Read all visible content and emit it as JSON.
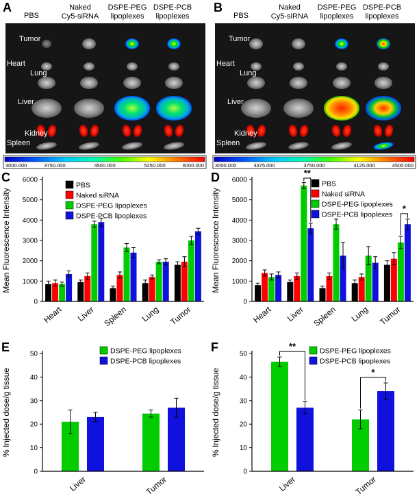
{
  "panel_labels": {
    "A": "A",
    "B": "B",
    "C": "C",
    "D": "D",
    "E": "E",
    "F": "F"
  },
  "imaging_panels": [
    {
      "id": "A",
      "column_headers": [
        [
          "PBS"
        ],
        [
          "Naked",
          "Cy5-siRNA"
        ],
        [
          "DSPE-PEG",
          "lipoplexes"
        ],
        [
          "DSPE-PCB",
          "lipoplexes"
        ]
      ],
      "organ_labels": [
        "Tumor",
        "Heart",
        "Lung",
        "Liver",
        "Kidney",
        "Spleen"
      ],
      "colorbar_ticks": [
        "3000.000",
        "3750.000",
        "4500.000",
        "5250.000",
        "6000.000"
      ],
      "organ_fluorescence": {
        "tumor": [
          "dim",
          "gray",
          "hot",
          "hot"
        ],
        "heart": [
          "gray",
          "gray",
          "gray",
          "gray"
        ],
        "lung": [
          "gray",
          "gray",
          "gray",
          "gray"
        ],
        "liver": [
          "gray",
          "gray",
          "hotgreen",
          "hotgreen"
        ],
        "kidney": [
          "red",
          "red",
          "red",
          "red"
        ],
        "spleen": [
          "gray",
          "gray",
          "gray",
          "gray"
        ]
      }
    },
    {
      "id": "B",
      "column_headers": [
        [
          "PBS"
        ],
        [
          "Naked",
          "Cy5-siRNA"
        ],
        [
          "DSPE-PEG",
          "lipoplexes"
        ],
        [
          "DSPE-PCB",
          "lipoplexes"
        ]
      ],
      "organ_labels": [
        "Tumor",
        "Heart",
        "Lung",
        "Liver",
        "Kidney",
        "Spleen"
      ],
      "colorbar_ticks": [
        "3000.000",
        "3375.000",
        "3750.000",
        "4125.000",
        "4500.000"
      ],
      "organ_fluorescence": {
        "tumor": [
          "gray",
          "gray",
          "hot",
          "hotstrong"
        ],
        "heart": [
          "gray",
          "gray",
          "gray",
          "gray"
        ],
        "lung": [
          "gray",
          "gray",
          "gray",
          "gray"
        ],
        "liver": [
          "gray",
          "gray",
          "hotred",
          "hotmix"
        ],
        "kidney": [
          "red",
          "red",
          "red",
          "red"
        ],
        "spleen": [
          "gray",
          "gray",
          "gray",
          "hot"
        ]
      }
    }
  ],
  "chart_data": [
    {
      "id": "C",
      "type": "bar",
      "ylabel": "Mean Fluorescence Intensity",
      "xlabel": "",
      "ylim": [
        0,
        6000
      ],
      "yticks": [
        0,
        1000,
        2000,
        3000,
        4000,
        5000,
        6000
      ],
      "categories": [
        "Heart",
        "Liver",
        "Spleen",
        "Lung",
        "Tumor"
      ],
      "series": [
        {
          "name": "PBS",
          "color": "#000000",
          "values": [
            850,
            950,
            650,
            900,
            1800
          ],
          "errors": [
            150,
            100,
            100,
            150,
            150
          ]
        },
        {
          "name": "Naked siRNA",
          "color": "#ff0000",
          "values": [
            900,
            1250,
            1300,
            1200,
            1950
          ],
          "errors": [
            150,
            150,
            150,
            100,
            250
          ]
        },
        {
          "name": "DSPE-PEG lipoplexes",
          "color": "#00cc00",
          "values": [
            850,
            3800,
            2650,
            1950,
            3000
          ],
          "errors": [
            100,
            150,
            200,
            100,
            200
          ]
        },
        {
          "name": "DSPE-PCB lipoplexes",
          "color": "#1111dd",
          "values": [
            1350,
            3900,
            2400,
            1950,
            3450
          ],
          "errors": [
            150,
            200,
            250,
            150,
            150
          ]
        }
      ],
      "legend_position": "top-left",
      "significance": []
    },
    {
      "id": "D",
      "type": "bar",
      "ylabel": "Mean Fluorescence Intensity",
      "xlabel": "",
      "ylim": [
        0,
        6000
      ],
      "yticks": [
        0,
        1000,
        2000,
        3000,
        4000,
        5000,
        6000
      ],
      "categories": [
        "Heart",
        "Liver",
        "Spleen",
        "Lung",
        "Tumor"
      ],
      "series": [
        {
          "name": "PBS",
          "color": "#000000",
          "values": [
            800,
            950,
            650,
            900,
            1800
          ],
          "errors": [
            100,
            100,
            100,
            150,
            200
          ]
        },
        {
          "name": "Naked siRNA",
          "color": "#ff0000",
          "values": [
            1400,
            1250,
            1250,
            1200,
            2100
          ],
          "errors": [
            150,
            150,
            150,
            150,
            300
          ]
        },
        {
          "name": "DSPE-PEG lipoplexes",
          "color": "#00cc00",
          "values": [
            1200,
            5700,
            3800,
            2250,
            2900
          ],
          "errors": [
            150,
            150,
            250,
            450,
            300
          ]
        },
        {
          "name": "DSPE-PCB lipoplexes",
          "color": "#1111dd",
          "values": [
            1300,
            3600,
            2250,
            1900,
            3800
          ],
          "errors": [
            150,
            250,
            650,
            300,
            250
          ]
        }
      ],
      "legend_position": "top-right",
      "significance": [
        {
          "category": "Liver",
          "series": [
            2,
            3
          ],
          "label": "**"
        },
        {
          "category": "Tumor",
          "series": [
            2,
            3
          ],
          "label": "*"
        }
      ]
    },
    {
      "id": "E",
      "type": "bar",
      "ylabel": "% Injected dose/g tissue",
      "xlabel": "",
      "ylim": [
        0,
        50
      ],
      "yticks": [
        0,
        10,
        20,
        30,
        40,
        50
      ],
      "categories": [
        "Liver",
        "Tumor"
      ],
      "series": [
        {
          "name": "DSPE-PEG lipoplexes",
          "color": "#00cc00",
          "values": [
            21,
            24.5
          ],
          "errors": [
            5,
            1.5
          ]
        },
        {
          "name": "DSPE-PCB lipoplexes",
          "color": "#1111dd",
          "values": [
            23,
            27
          ],
          "errors": [
            2,
            4
          ]
        }
      ],
      "legend_position": "top-right",
      "significance": []
    },
    {
      "id": "F",
      "type": "bar",
      "ylabel": "% Injected dose/g tissue",
      "xlabel": "",
      "ylim": [
        0,
        50
      ],
      "yticks": [
        0,
        10,
        20,
        30,
        40,
        50
      ],
      "categories": [
        "Liver",
        "Tumor"
      ],
      "series": [
        {
          "name": "DSPE-PEG lipoplexes",
          "color": "#00cc00",
          "values": [
            46.5,
            22
          ],
          "errors": [
            2,
            4
          ]
        },
        {
          "name": "DSPE-PCB lipoplexes",
          "color": "#1111dd",
          "values": [
            27,
            34
          ],
          "errors": [
            2.5,
            3.5
          ]
        }
      ],
      "legend_position": "top-right",
      "significance": [
        {
          "category": "Liver",
          "series": [
            0,
            1
          ],
          "label": "**"
        },
        {
          "category": "Tumor",
          "series": [
            0,
            1
          ],
          "label": "*"
        }
      ]
    }
  ]
}
